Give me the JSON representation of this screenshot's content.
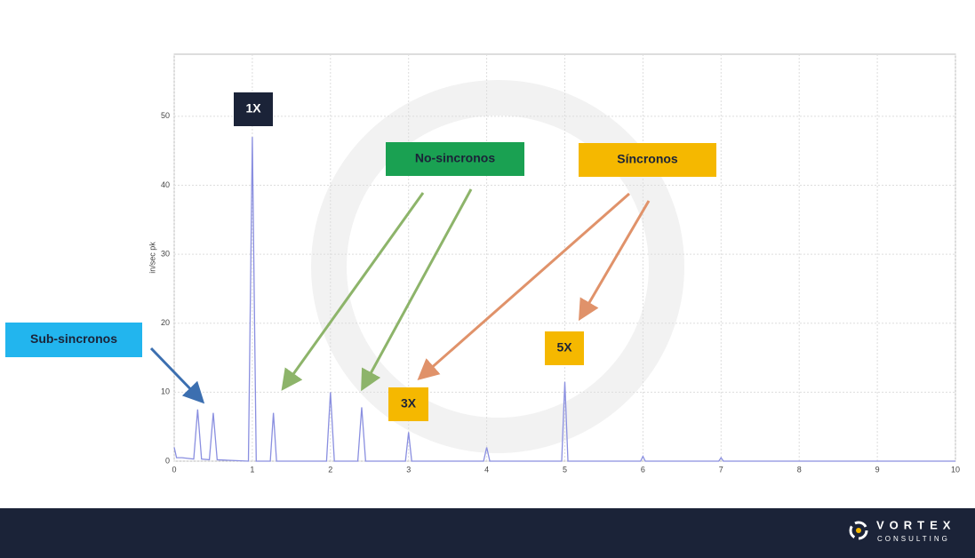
{
  "chart_data": {
    "type": "line",
    "y_label": "in/sec pk",
    "x": [
      0,
      0.03,
      0.1,
      0.25,
      0.3,
      0.35,
      0.45,
      0.5,
      0.55,
      0.95,
      1.0,
      1.05,
      1.23,
      1.27,
      1.31,
      1.95,
      2.0,
      2.05,
      2.35,
      2.4,
      2.45,
      2.96,
      3.0,
      3.04,
      3.96,
      4.0,
      4.04,
      4.96,
      5.0,
      5.04,
      5.97,
      6.0,
      6.03,
      6.97,
      7.0,
      7.03,
      10
    ],
    "values": [
      2,
      0.5,
      0.5,
      0.3,
      7.5,
      0.3,
      0.2,
      7,
      0.2,
      0,
      47,
      0,
      0,
      7,
      0,
      0,
      10,
      0,
      0,
      7.8,
      0,
      0,
      4.2,
      0,
      0,
      2,
      0,
      0,
      11.5,
      0,
      0,
      0.7,
      0,
      0,
      0.5,
      0,
      0
    ],
    "color": "#8a8fe0",
    "xlim": [
      0,
      10
    ],
    "xticks": [
      0,
      1,
      2,
      3,
      4,
      5,
      6,
      7,
      8,
      9,
      10
    ],
    "ylim": [
      0,
      59
    ],
    "yticks": [
      0,
      10,
      20,
      30,
      40,
      50
    ],
    "grid": true,
    "annotations": [
      "1X",
      "No-sincronos",
      "Síncronos",
      "Sub-sincronos",
      "3X",
      "5X"
    ]
  },
  "footer": {
    "brand": "VORTEX",
    "tagline": "CONSULTING"
  }
}
